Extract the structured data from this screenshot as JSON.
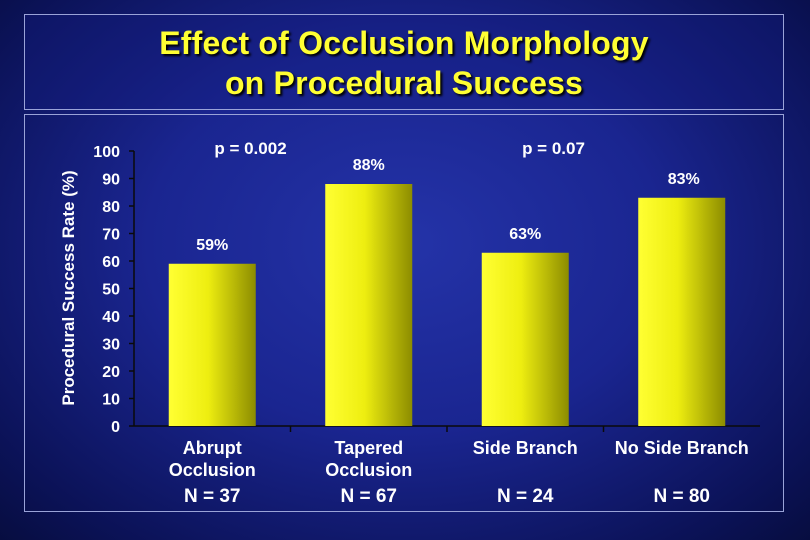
{
  "title": {
    "line1": "Effect of Occlusion Morphology",
    "line2": "on Procedural Success"
  },
  "colors": {
    "bar_light": "#ffff33",
    "bar_dark": "#8c8c00",
    "title": "#ffff33",
    "text": "#ffffff"
  },
  "chart_data": {
    "type": "bar",
    "title": "Effect of Occlusion Morphology on Procedural Success",
    "ylabel": "Procedural Success Rate (%)",
    "xlabel": "",
    "ylim": [
      0,
      100
    ],
    "yticks": [
      0,
      10,
      20,
      30,
      40,
      50,
      60,
      70,
      80,
      90,
      100
    ],
    "categories": [
      [
        "Abrupt",
        "Occlusion"
      ],
      [
        "Tapered",
        "Occlusion"
      ],
      [
        "Side Branch"
      ],
      [
        "No Side Branch"
      ]
    ],
    "n_labels": [
      "N = 37",
      "N = 67",
      "N = 24",
      "N = 80"
    ],
    "values": [
      59,
      88,
      63,
      83
    ],
    "data_labels": [
      "59%",
      "88%",
      "63%",
      "83%"
    ],
    "annotations": [
      {
        "text": "p = 0.002",
        "group": "Abrupt vs Tapered Occlusion"
      },
      {
        "text": "p = 0.07",
        "group": "Side Branch vs No Side Branch"
      }
    ],
    "grid": false,
    "legend": "none"
  }
}
